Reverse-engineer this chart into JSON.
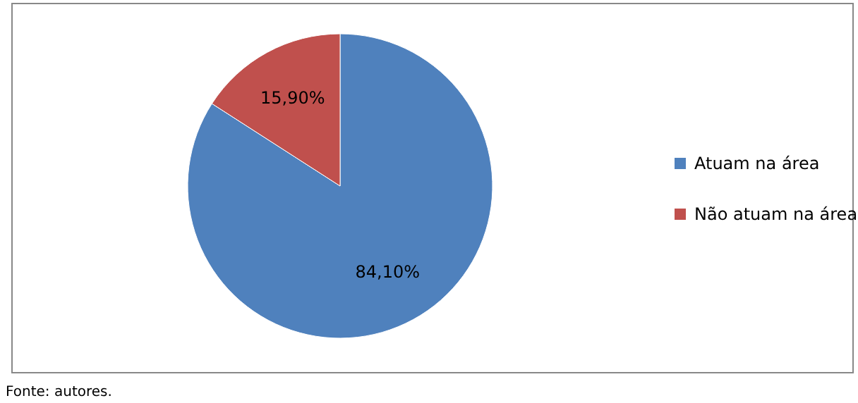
{
  "chart_data": {
    "type": "pie",
    "categories": [
      "Atuam na área",
      "Não atuam na área"
    ],
    "values": [
      84.1,
      15.9
    ],
    "colors": [
      "#4f81bd",
      "#c0504d"
    ],
    "value_labels": [
      "84,10%",
      "15,90%"
    ],
    "legend": "right",
    "annotations": [
      "Fonte: autores."
    ]
  }
}
